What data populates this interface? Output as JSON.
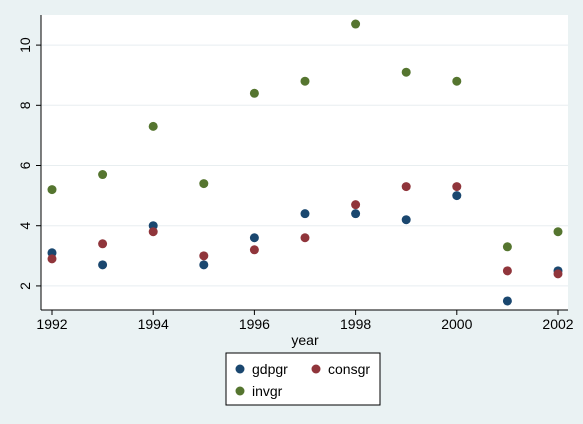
{
  "chart_data": {
    "type": "scatter",
    "xlabel": "year",
    "ylabel": "",
    "xlim": [
      1992,
      2002
    ],
    "ylim": [
      1.2,
      11.0
    ],
    "x_ticks": [
      "1992",
      "1994",
      "1996",
      "1998",
      "2000",
      "2002"
    ],
    "y_ticks": [
      "2",
      "4",
      "6",
      "8",
      "10"
    ],
    "grid": "horizontal",
    "legend_position": "bottom-center",
    "x": [
      1992,
      1993,
      1994,
      1995,
      1996,
      1997,
      1998,
      1999,
      2000,
      2001,
      2002
    ],
    "series": [
      {
        "name": "gdpgr",
        "color": "#1a476f",
        "values": [
          3.1,
          2.7,
          4.0,
          2.7,
          3.6,
          4.4,
          4.4,
          4.2,
          5.0,
          1.5,
          2.5
        ]
      },
      {
        "name": "consgr",
        "color": "#90353b",
        "values": [
          2.9,
          3.4,
          3.8,
          3.0,
          3.2,
          3.6,
          4.7,
          5.3,
          5.3,
          2.5,
          2.4
        ]
      },
      {
        "name": "invgr",
        "color": "#55752f",
        "values": [
          5.2,
          5.7,
          7.3,
          5.4,
          8.4,
          8.8,
          10.7,
          9.1,
          8.8,
          3.3,
          3.8
        ]
      }
    ]
  }
}
